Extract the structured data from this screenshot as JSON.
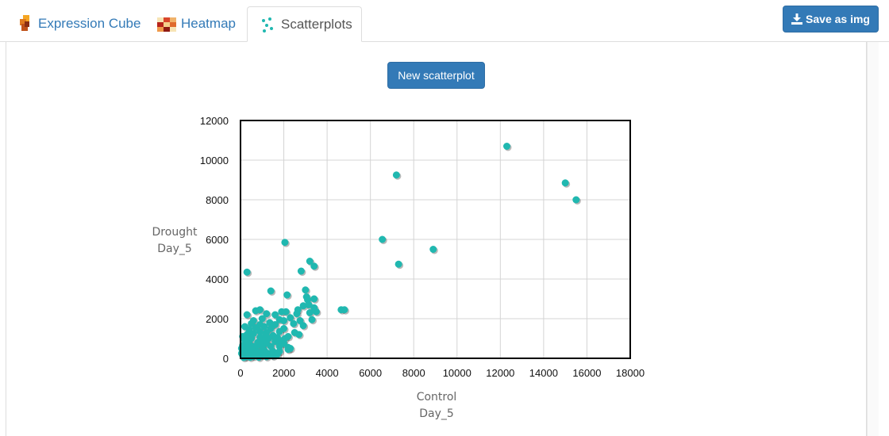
{
  "tabs": [
    {
      "label": "Expression Cube",
      "active": false,
      "icon": "cube-icon"
    },
    {
      "label": "Heatmap",
      "active": false,
      "icon": "heatmap-icon"
    },
    {
      "label": "Scatterplots",
      "active": true,
      "icon": "scatter-icon"
    }
  ],
  "toolbar": {
    "save_label": "Save as img",
    "save_icon": "download-icon"
  },
  "main": {
    "new_scatterplot_label": "New scatterplot"
  },
  "colors": {
    "accent": "#337ab7",
    "point": "#20b8b0",
    "tab_inactive": "#337ab7",
    "tab_active": "#555555"
  },
  "chart_data": {
    "type": "scatter",
    "xlabel_lines": [
      "Control",
      "Day_5"
    ],
    "ylabel_lines": [
      "Drought",
      "Day_5"
    ],
    "xlim": [
      0,
      18000
    ],
    "ylim": [
      0,
      12000
    ],
    "xticks": [
      0,
      2000,
      4000,
      6000,
      8000,
      10000,
      12000,
      14000,
      16000,
      18000
    ],
    "yticks": [
      0,
      2000,
      4000,
      6000,
      8000,
      10000,
      12000
    ],
    "grid": true,
    "points": [
      [
        12300,
        10700
      ],
      [
        7200,
        9250
      ],
      [
        15000,
        8850
      ],
      [
        15500,
        8000
      ],
      [
        6550,
        6000
      ],
      [
        2050,
        5850
      ],
      [
        8900,
        5500
      ],
      [
        7300,
        4750
      ],
      [
        3200,
        4900
      ],
      [
        3400,
        4650
      ],
      [
        2800,
        4400
      ],
      [
        300,
        4350
      ],
      [
        1400,
        3400
      ],
      [
        3000,
        3450
      ],
      [
        2150,
        3200
      ],
      [
        3050,
        3100
      ],
      [
        3100,
        2950
      ],
      [
        3400,
        3000
      ],
      [
        2900,
        2650
      ],
      [
        3150,
        2700
      ],
      [
        3400,
        2550
      ],
      [
        2650,
        2450
      ],
      [
        4650,
        2450
      ],
      [
        4800,
        2450
      ],
      [
        1900,
        2350
      ],
      [
        2100,
        2350
      ],
      [
        2600,
        2250
      ],
      [
        3200,
        2300
      ],
      [
        3500,
        2350
      ],
      [
        900,
        2450
      ],
      [
        700,
        2400
      ],
      [
        1200,
        2250
      ],
      [
        1600,
        2200
      ],
      [
        2300,
        2050
      ],
      [
        2750,
        1900
      ],
      [
        2000,
        1900
      ],
      [
        1350,
        1800
      ],
      [
        900,
        1700
      ],
      [
        300,
        2200
      ],
      [
        200,
        1600
      ],
      [
        600,
        1900
      ],
      [
        1800,
        1950
      ],
      [
        2450,
        1750
      ],
      [
        1600,
        1700
      ],
      [
        1100,
        1600
      ],
      [
        700,
        1550
      ],
      [
        400,
        1450
      ],
      [
        1400,
        1500
      ],
      [
        2000,
        1500
      ],
      [
        1800,
        1350
      ],
      [
        1200,
        1300
      ],
      [
        900,
        1350
      ],
      [
        600,
        1250
      ],
      [
        300,
        1200
      ],
      [
        100,
        1100
      ],
      [
        1500,
        1150
      ],
      [
        1700,
        1050
      ],
      [
        2200,
        1100
      ],
      [
        2050,
        1000
      ],
      [
        1300,
        1000
      ],
      [
        900,
        1050
      ],
      [
        500,
        1000
      ],
      [
        200,
        900
      ],
      [
        1000,
        900
      ],
      [
        1600,
        850
      ],
      [
        1200,
        750
      ],
      [
        800,
        800
      ],
      [
        400,
        750
      ],
      [
        100,
        650
      ],
      [
        600,
        600
      ],
      [
        1000,
        600
      ],
      [
        1400,
        600
      ],
      [
        1800,
        600
      ],
      [
        2200,
        550
      ],
      [
        2300,
        500
      ],
      [
        2200,
        450
      ],
      [
        700,
        450
      ],
      [
        300,
        450
      ],
      [
        1100,
        400
      ],
      [
        1500,
        350
      ],
      [
        1800,
        350
      ],
      [
        900,
        300
      ],
      [
        500,
        300
      ],
      [
        200,
        250
      ],
      [
        1300,
        250
      ],
      [
        700,
        200
      ],
      [
        400,
        150
      ],
      [
        100,
        150
      ],
      [
        1000,
        150
      ],
      [
        600,
        100
      ],
      [
        250,
        80
      ],
      [
        1200,
        80
      ],
      [
        850,
        50
      ],
      [
        450,
        50
      ],
      [
        150,
        40
      ],
      [
        1500,
        120
      ],
      [
        1700,
        200
      ],
      [
        350,
        550
      ],
      [
        750,
        650
      ],
      [
        1150,
        1150
      ],
      [
        2500,
        1300
      ],
      [
        2700,
        1200
      ],
      [
        2900,
        1650
      ],
      [
        3300,
        1950
      ],
      [
        1000,
        2000
      ],
      [
        500,
        1750
      ],
      [
        150,
        350
      ],
      [
        50,
        500
      ],
      [
        50,
        250
      ],
      [
        300,
        1000
      ],
      [
        1800,
        900
      ],
      [
        2000,
        750
      ]
    ]
  }
}
